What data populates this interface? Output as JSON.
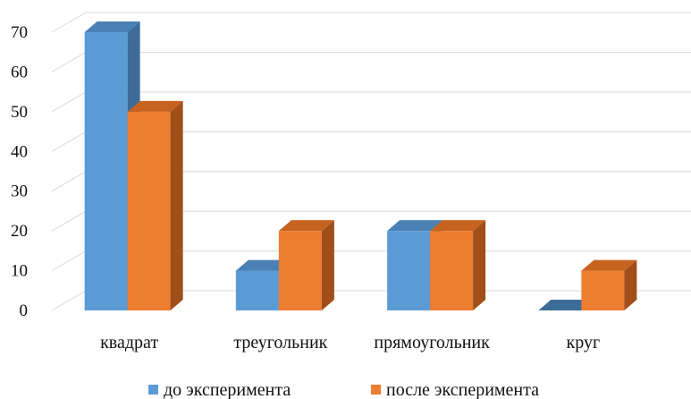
{
  "chart_data": {
    "type": "bar",
    "title": "",
    "xlabel": "",
    "ylabel": "",
    "ylim": [
      0,
      70
    ],
    "yticks": [
      0,
      10,
      20,
      30,
      40,
      50,
      60,
      70
    ],
    "grid": true,
    "legend": "bottom",
    "categories": [
      "квадрат",
      "треугольник",
      "прямоугольник",
      "круг"
    ],
    "series": [
      {
        "name": "до эксперимента",
        "values": [
          70,
          10,
          20,
          0
        ],
        "color": "#5B9BD5",
        "side_color": "#3D6C98",
        "top_color": "#4A80B4"
      },
      {
        "name": "после эксперимента",
        "values": [
          50,
          20,
          20,
          10
        ],
        "color": "#ED7D31",
        "side_color": "#A04E1A",
        "top_color": "#C8631F"
      }
    ]
  }
}
